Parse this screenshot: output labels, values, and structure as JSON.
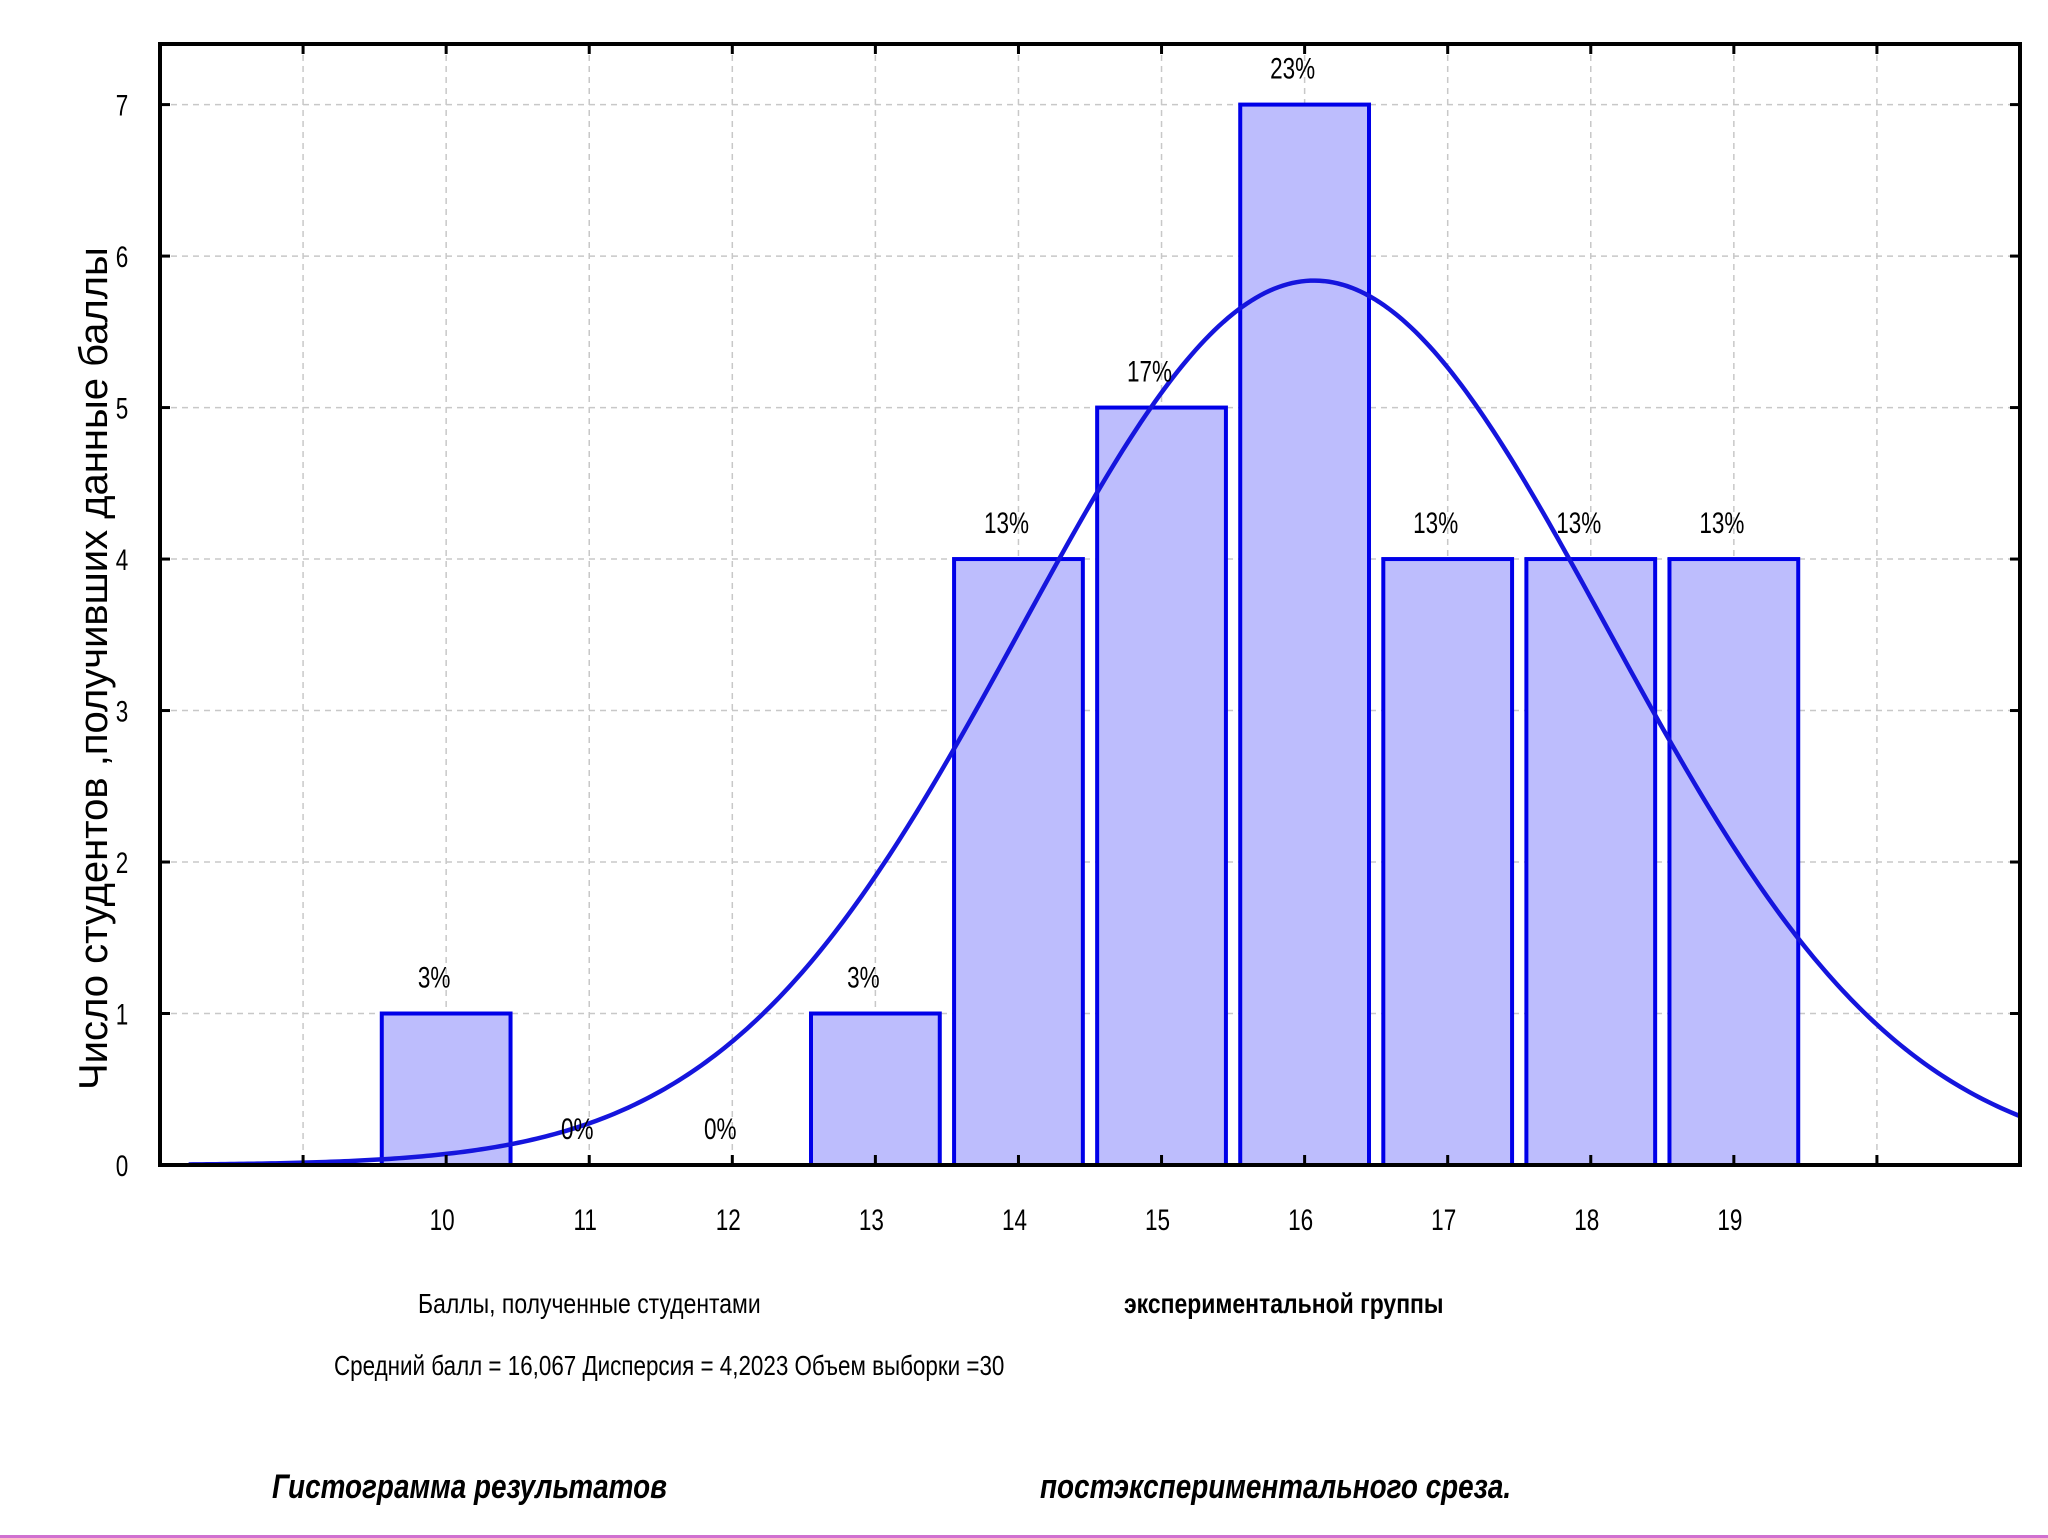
{
  "chart_data": {
    "type": "bar",
    "categories": [
      "10",
      "11",
      "12",
      "13",
      "14",
      "15",
      "16",
      "17",
      "18",
      "19"
    ],
    "values": [
      1,
      0,
      0,
      1,
      4,
      5,
      7,
      4,
      4,
      4
    ],
    "percent_labels": [
      "3%",
      "0%",
      "0%",
      "3%",
      "13%",
      "17%",
      "23%",
      "13%",
      "13%",
      "13%"
    ],
    "yticks": [
      "0",
      "1",
      "2",
      "3",
      "4",
      "5",
      "6",
      "7"
    ],
    "ylim": [
      0,
      7.4
    ],
    "xlim": [
      8,
      21
    ],
    "ylabel": "Число студентов ,получивших данные баллы",
    "xlabel_part1": "Баллы, полученные студентами",
    "xlabel_part2": "экспериментальной группы",
    "stats_text": "Средний балл = 16,067     Дисперсия  = 4,2023    Объем выборки =30",
    "title_part1": "Гистограмма результатов",
    "title_part2": "постэкспериментального среза.",
    "grid": true,
    "normal_curve": {
      "mean": 16.067,
      "variance": 4.2023,
      "n": 30,
      "bin_width": 1
    },
    "bar_fill": "#bdbdfd",
    "bar_stroke": "#0000e8",
    "curve_color": "#1515dd"
  }
}
